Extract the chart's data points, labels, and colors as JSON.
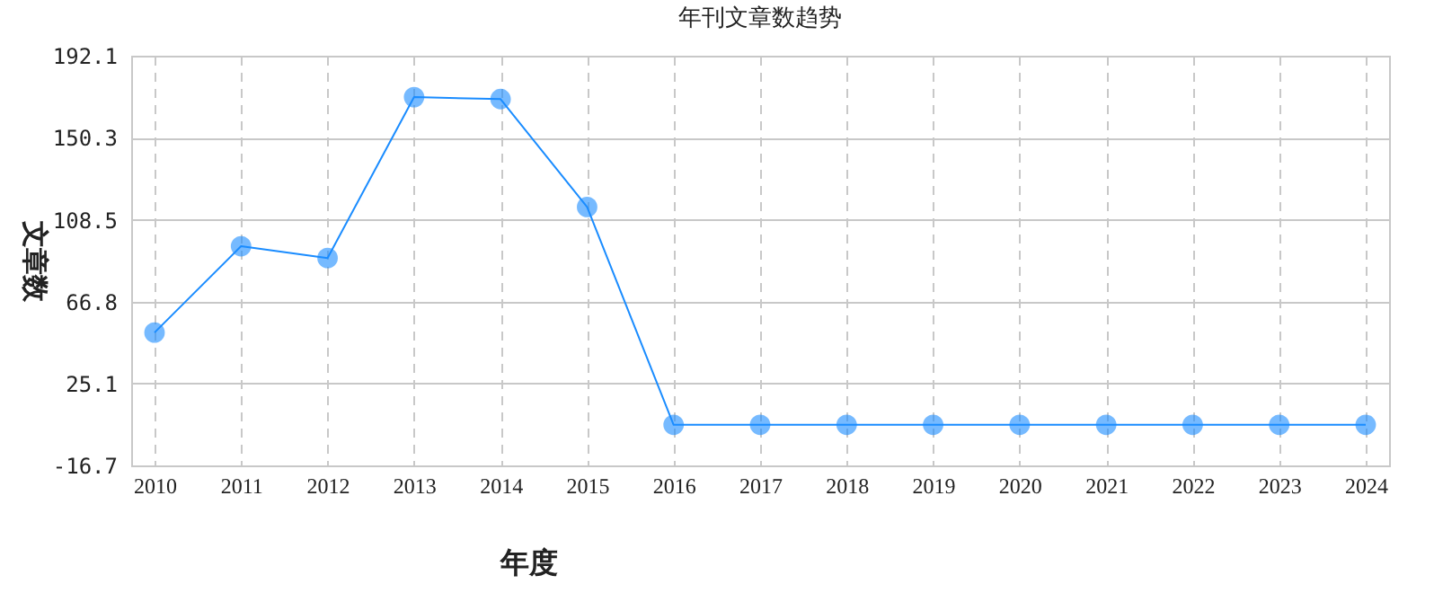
{
  "chart_data": {
    "type": "line",
    "title": "年刊文章数趋势",
    "xlabel": "年度",
    "ylabel": "文章数",
    "categories": [
      "2010",
      "2011",
      "2012",
      "2013",
      "2014",
      "2015",
      "2016",
      "2017",
      "2018",
      "2019",
      "2020",
      "2021",
      "2022",
      "2023",
      "2024"
    ],
    "series": [
      {
        "color": "#1a8cff",
        "values": [
          51,
          95,
          89,
          171,
          170,
          115,
          4,
          4,
          4,
          4,
          4,
          4,
          4,
          4,
          4
        ]
      }
    ],
    "ylim": [
      -16.7,
      192.1
    ],
    "yticks": [
      -16.7,
      25.1,
      66.8,
      108.5,
      150.3,
      192.1
    ],
    "grid": true,
    "marker": "circle",
    "line_style": "solid"
  }
}
